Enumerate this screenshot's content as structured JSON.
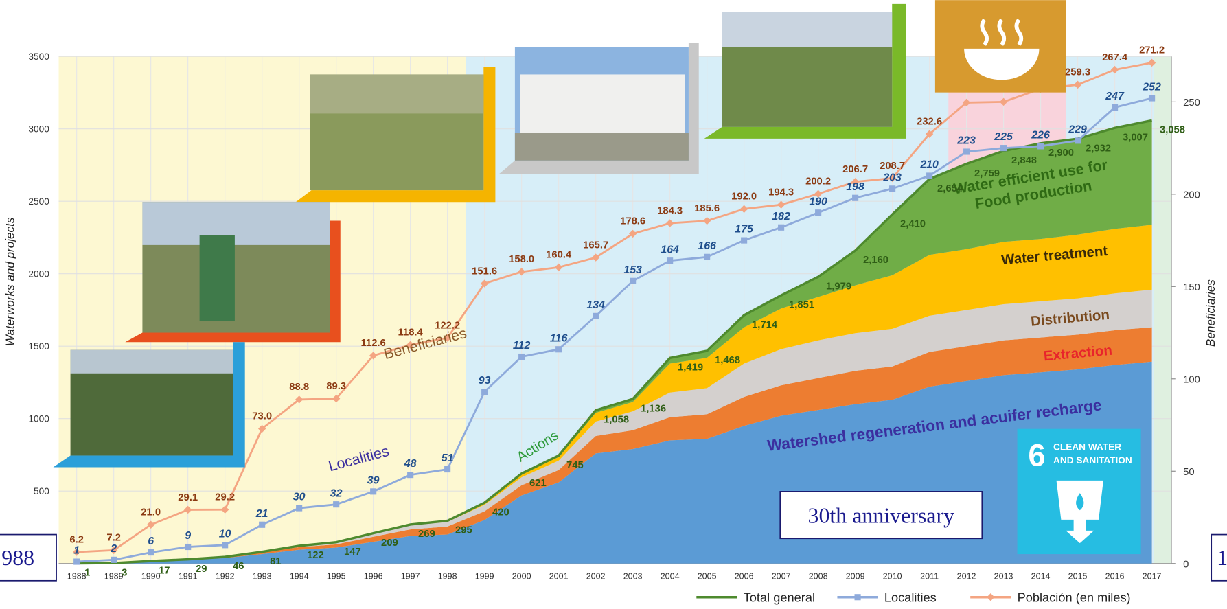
{
  "chart_data": {
    "type": "combo",
    "categories": [
      "1988",
      "1989",
      "1990",
      "1991",
      "1992",
      "1993",
      "1994",
      "1995",
      "1996",
      "1997",
      "1998",
      "1999",
      "2000",
      "2001",
      "2002",
      "2003",
      "2004",
      "2005",
      "2006",
      "2007",
      "2008",
      "2009",
      "2010",
      "2011",
      "2012",
      "2013",
      "2014",
      "2015",
      "2016",
      "2017"
    ],
    "y_label": "Waterworks and projects",
    "y2_label": "Beneficiaries",
    "ylim": [
      0,
      3500
    ],
    "yticks": [
      500,
      1000,
      1500,
      2000,
      2500,
      3000,
      3500
    ],
    "y2lim": [
      0,
      274.6
    ],
    "y2ticks": [
      0,
      50,
      100,
      150,
      200,
      250
    ],
    "grid": true,
    "areas": [
      {
        "name": "Watershed regeneration and acuifer recharge",
        "color": "#5b9bd5",
        "label_color": "#3b2f9f",
        "values": [
          1,
          3,
          14,
          24,
          38,
          65,
          95,
          110,
          150,
          190,
          200,
          300,
          470,
          560,
          760,
          790,
          850,
          860,
          950,
          1020,
          1060,
          1100,
          1130,
          1220,
          1260,
          1300,
          1320,
          1340,
          1370,
          1393
        ]
      },
      {
        "name": "Extraction",
        "color": "#ed7d31",
        "label_color": "#e8242b",
        "values": [
          0,
          0,
          3,
          5,
          8,
          12,
          18,
          22,
          35,
          45,
          55,
          60,
          70,
          85,
          120,
          130,
          160,
          170,
          200,
          210,
          220,
          230,
          230,
          240,
          240,
          240,
          240,
          240,
          240,
          238
        ]
      },
      {
        "name": "Distribution",
        "color": "#d4d0ce",
        "label_color": "#7a4a1e",
        "values": [
          0,
          0,
          0,
          0,
          0,
          4,
          9,
          15,
          20,
          28,
          32,
          45,
          55,
          65,
          100,
          130,
          170,
          180,
          230,
          250,
          260,
          260,
          260,
          250,
          250,
          250,
          250,
          250,
          255,
          259
        ]
      },
      {
        "name": "Water treatment",
        "color": "#ffc000",
        "label_color": "#3a2a0a",
        "values": [
          0,
          0,
          0,
          0,
          0,
          0,
          0,
          0,
          4,
          6,
          8,
          15,
          20,
          25,
          60,
          65,
          200,
          210,
          250,
          280,
          300,
          330,
          370,
          420,
          420,
          430,
          430,
          440,
          445,
          448
        ]
      },
      {
        "name": "Water efficient use for Food production",
        "color": "#70ad47",
        "label_color": "#2f6b14",
        "values": [
          0,
          0,
          0,
          0,
          0,
          0,
          0,
          0,
          0,
          0,
          0,
          0,
          6,
          10,
          18,
          21,
          39,
          48,
          84,
          91,
          139,
          240,
          420,
          524,
          589,
          628,
          660,
          662,
          697,
          720
        ]
      }
    ],
    "series": [
      {
        "name": "Total general",
        "color": "#4e8a2e",
        "label_color": "#2f5e16",
        "axis": "y",
        "values": [
          1,
          3,
          17,
          29,
          46,
          81,
          122,
          147,
          209,
          269,
          295,
          420,
          621,
          745,
          1058,
          1136,
          1419,
          1468,
          1714,
          1851,
          1979,
          2160,
          2410,
          2654,
          2759,
          2848,
          2900,
          2932,
          3007,
          3058
        ],
        "value_labels": [
          "1",
          "3",
          "17",
          "29",
          "46",
          "81",
          "122",
          "147",
          "209",
          "269",
          "295",
          "420",
          "621",
          "745",
          "1,058",
          "1,136",
          "1,419",
          "1,468",
          "1,714",
          "1,851",
          "1,979",
          "2,160",
          "2,410",
          "2,654",
          "2,759",
          "2,848",
          "2,900",
          "2,932",
          "3,007",
          "3,058"
        ]
      },
      {
        "name": "Localities",
        "color": "#8eaadb",
        "label_color": "#1f4e8c",
        "axis": "y2",
        "values": [
          1,
          2,
          6,
          9,
          10,
          21,
          30,
          32,
          39,
          48,
          51,
          93,
          112,
          116,
          134,
          153,
          164,
          166,
          175,
          182,
          190,
          198,
          203,
          210,
          223,
          225,
          226,
          229,
          247,
          252
        ]
      },
      {
        "name": "Población (en miles)",
        "color": "#f4a582",
        "label_color": "#8b3a12",
        "axis": "y2",
        "values": [
          6.2,
          7.2,
          21.0,
          29.1,
          29.2,
          73.0,
          88.8,
          89.3,
          112.6,
          118.4,
          122.2,
          151.6,
          158.0,
          160.4,
          165.7,
          178.6,
          184.3,
          185.6,
          192.0,
          194.3,
          200.2,
          206.7,
          208.7,
          232.6,
          249.6,
          250,
          257,
          259.3,
          267.4,
          271.2
        ],
        "value_labels": [
          "6.2",
          "7.2",
          "21.0",
          "29.1",
          "29.2",
          "73.0",
          "88.8",
          "89.3",
          "112.6",
          "118.4",
          "122.2",
          "151.6",
          "158.0",
          "160.4",
          "165.7",
          "178.6",
          "184.3",
          "185.6",
          "192.0",
          "194.3",
          "200.2",
          "206.7",
          "208.7",
          "232.6",
          null,
          null,
          null,
          "259.3",
          "267.4",
          "271.2"
        ]
      }
    ],
    "annotations": [
      "Beneficiaries",
      "Localities",
      "Actions"
    ]
  },
  "badges": {
    "anniversary": "30th anniversary",
    "left_year": "988",
    "right_year": "1"
  },
  "sdg": {
    "number": "6",
    "lines": [
      "CLEAN WATER",
      "AND SANITATION"
    ]
  }
}
